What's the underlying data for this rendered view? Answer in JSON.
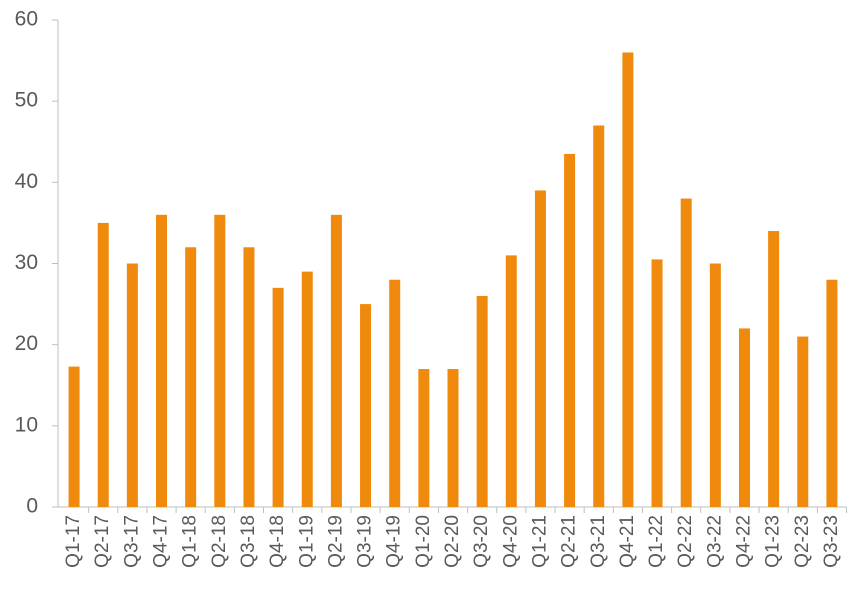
{
  "chart_data": {
    "type": "bar",
    "categories": [
      "Q1-17",
      "Q2-17",
      "Q3-17",
      "Q4-17",
      "Q1-18",
      "Q2-18",
      "Q3-18",
      "Q4-18",
      "Q1-19",
      "Q2-19",
      "Q3-19",
      "Q4-19",
      "Q1-20",
      "Q2-20",
      "Q3-20",
      "Q4-20",
      "Q1-21",
      "Q2-21",
      "Q3-21",
      "Q4-21",
      "Q1-22",
      "Q2-22",
      "Q3-22",
      "Q4-22",
      "Q1-23",
      "Q2-23",
      "Q3-23"
    ],
    "values": [
      17.3,
      35,
      30,
      36,
      32,
      36,
      32,
      27,
      29,
      36,
      25,
      28,
      17,
      17,
      26,
      31,
      39,
      43.5,
      47,
      56,
      30.5,
      38,
      30,
      22,
      34,
      21,
      28
    ],
    "color": "#f08a0c",
    "ylim": [
      0,
      60
    ],
    "yticks": [
      0,
      10,
      20,
      30,
      40,
      50,
      60
    ],
    "grid": false
  }
}
